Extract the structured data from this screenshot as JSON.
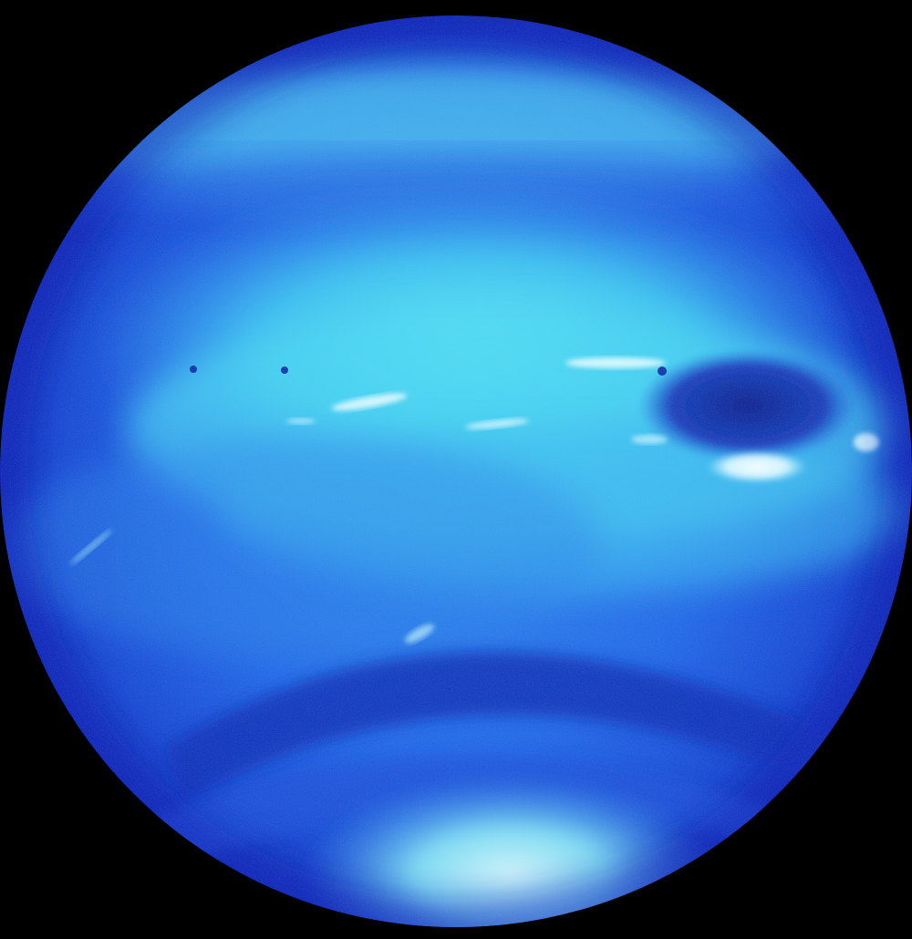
{
  "image": {
    "subject": "planet",
    "background_color": "#000000",
    "colors": {
      "deep_blue": "#0A1FB8",
      "mid_blue": "#1E63E6",
      "cyan": "#4FE0F0",
      "pale_cyan": "#A8F2F8",
      "white_cloud": "#F2FFFF",
      "dark_storm": "#0B1A8C"
    }
  }
}
